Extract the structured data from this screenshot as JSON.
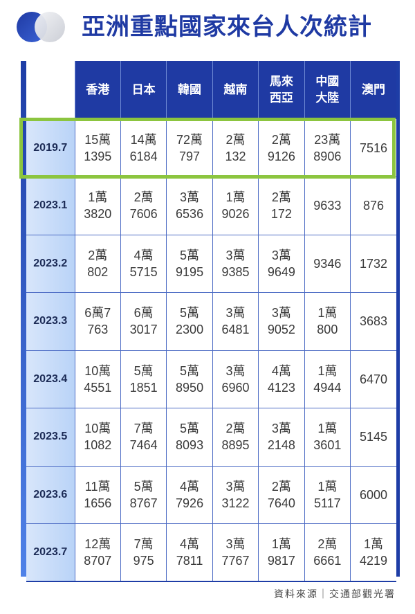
{
  "title": "亞洲重點國家來台人次統計",
  "columns": [
    [
      "香港"
    ],
    [
      "日本"
    ],
    [
      "韓國"
    ],
    [
      "越南"
    ],
    [
      "馬來",
      "西亞"
    ],
    [
      "中國",
      "大陸"
    ],
    [
      "澳門"
    ]
  ],
  "rows": [
    {
      "label": "2019.7",
      "cells": [
        [
          "15萬",
          "1395"
        ],
        [
          "14萬",
          "6184"
        ],
        [
          "72萬",
          "797"
        ],
        [
          "2萬",
          "132"
        ],
        [
          "2萬",
          "9126"
        ],
        [
          "23萬",
          "8906"
        ],
        [
          "7516"
        ]
      ]
    },
    {
      "label": "2023.1",
      "cells": [
        [
          "1萬",
          "3820"
        ],
        [
          "2萬",
          "7606"
        ],
        [
          "3萬",
          "6536"
        ],
        [
          "1萬",
          "9026"
        ],
        [
          "2萬",
          "172"
        ],
        [
          "9633"
        ],
        [
          "876"
        ]
      ]
    },
    {
      "label": "2023.2",
      "cells": [
        [
          "2萬",
          "802"
        ],
        [
          "4萬",
          "5715"
        ],
        [
          "5萬",
          "9195"
        ],
        [
          "3萬",
          "9385"
        ],
        [
          "3萬",
          "9649"
        ],
        [
          "9346"
        ],
        [
          "1732"
        ]
      ]
    },
    {
      "label": "2023.3",
      "cells": [
        [
          "6萬7",
          "763"
        ],
        [
          "6萬",
          "3017"
        ],
        [
          "5萬",
          "2300"
        ],
        [
          "3萬",
          "6481"
        ],
        [
          "3萬",
          "9052"
        ],
        [
          "1萬",
          "800"
        ],
        [
          "3683"
        ]
      ]
    },
    {
      "label": "2023.4",
      "cells": [
        [
          "10萬",
          "4551"
        ],
        [
          "5萬",
          "1851"
        ],
        [
          "5萬",
          "8950"
        ],
        [
          "3萬",
          "6960"
        ],
        [
          "4萬",
          "4123"
        ],
        [
          "1萬",
          "4944"
        ],
        [
          "6470"
        ]
      ]
    },
    {
      "label": "2023.5",
      "cells": [
        [
          "10萬",
          "1082"
        ],
        [
          "7萬",
          "7464"
        ],
        [
          "5萬",
          "8093"
        ],
        [
          "2萬",
          "8895"
        ],
        [
          "3萬",
          "2148"
        ],
        [
          "1萬",
          "3601"
        ],
        [
          "5145"
        ]
      ]
    },
    {
      "label": "2023.6",
      "cells": [
        [
          "11萬",
          "1656"
        ],
        [
          "5萬",
          "8767"
        ],
        [
          "4萬",
          "7926"
        ],
        [
          "3萬",
          "3122"
        ],
        [
          "2萬",
          "7640"
        ],
        [
          "1萬",
          "5117"
        ],
        [
          "6000"
        ]
      ]
    },
    {
      "label": "2023.7",
      "cells": [
        [
          "12萬",
          "8707"
        ],
        [
          "7萬",
          "975"
        ],
        [
          "4萬",
          "7811"
        ],
        [
          "3萬",
          "7767"
        ],
        [
          "1萬",
          "9817"
        ],
        [
          "2萬",
          "6661"
        ],
        [
          "1萬",
          "4219"
        ]
      ]
    }
  ],
  "highlight_row": "2019.7",
  "source": "資料來源｜交通部觀光署",
  "colors": {
    "header_bg": "#1f3aa3",
    "title": "#1f3aa3",
    "highlight": "#8cc53f",
    "row_label_bg": "#c7dbf8"
  }
}
